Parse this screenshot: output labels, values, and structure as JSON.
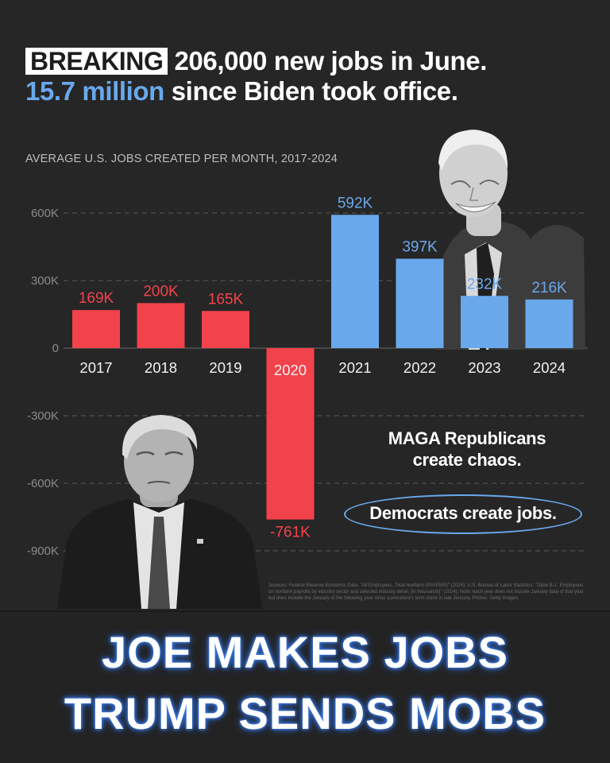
{
  "headline": {
    "badge": "BREAKING",
    "line1": "206,000 new jobs in June.",
    "line2_highlight": "15.7 million",
    "line2_rest": "since Biden took office."
  },
  "chart_data": {
    "type": "bar",
    "title": "AVERAGE U.S. JOBS CREATED PER MONTH, 2017-2024",
    "categories": [
      "2017",
      "2018",
      "2019",
      "2020",
      "2021",
      "2022",
      "2023",
      "2024"
    ],
    "values": [
      169000,
      200000,
      165000,
      -761000,
      592000,
      397000,
      232000,
      216000
    ],
    "value_labels": [
      "169K",
      "200K",
      "165K",
      "-761K",
      "592K",
      "397K",
      "232K",
      "216K"
    ],
    "bar_colors": [
      "#f2424b",
      "#f2424b",
      "#f2424b",
      "#f2424b",
      "#6aa8ec",
      "#6aa8ec",
      "#6aa8ec",
      "#6aa8ec"
    ],
    "yticks": [
      600000,
      300000,
      0,
      -300000,
      -600000,
      -900000
    ],
    "ytick_labels": [
      "600K",
      "300K",
      "0",
      "-300K",
      "-600K",
      "-900K"
    ],
    "ylim": [
      -900000,
      600000
    ],
    "grid": true
  },
  "annotations": {
    "republicans": "MAGA Republicans\ncreate chaos.",
    "democrats": "Democrats create jobs."
  },
  "sources": "Sources: Federal Reserve Economic Data, \"All Employees, Total Nonfarm (PAYEMS)\" (2024); U.S. Bureau of Labor Statistics, \"Table B-1. Employees on nonfarm payrolls by industry sector and selected industry detail, [in thousands]\" (2024); Note: each year does not include January data of that year but does include the January of the following year since a president's term starts in late January. Photos: Getty Images.",
  "banner": {
    "line1": "JOE MAKES JOBS",
    "line2": "TRUMP SENDS MOBS"
  },
  "colors": {
    "red": "#f2424b",
    "blue": "#6aa8ec",
    "background": "#262626"
  },
  "photos": [
    "biden-photo",
    "trump-photo"
  ]
}
